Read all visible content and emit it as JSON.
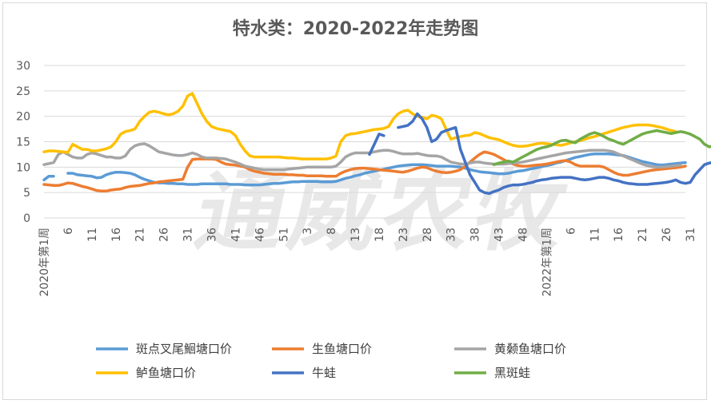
{
  "chart_data": {
    "type": "line",
    "title": "特水类：2020-2022年走势图",
    "watermark": "通威农牧",
    "ylim": [
      0,
      30
    ],
    "yticks": [
      0,
      5,
      10,
      15,
      20,
      25,
      30
    ],
    "x_tick_labels": [
      "2020年第1周",
      "6",
      "11",
      "16",
      "21",
      "26",
      "31",
      "36",
      "41",
      "46",
      "51",
      "3",
      "8",
      "13",
      "18",
      "23",
      "28",
      "33",
      "38",
      "43",
      "48",
      "2022年第1周",
      "6",
      "11",
      "16",
      "21",
      "26",
      "31"
    ],
    "legend_placement": "bottom",
    "grid": true,
    "series": [
      {
        "name": "斑点叉尾鮰塘口价",
        "color": "#5B9BD5",
        "values": [
          7.5,
          8.2,
          8.2,
          null,
          null,
          8.8,
          8.8,
          8.5,
          8.4,
          8.3,
          8.2,
          7.9,
          8.0,
          8.5,
          8.8,
          9.0,
          9.0,
          8.9,
          8.8,
          8.5,
          8.0,
          7.6,
          7.3,
          7.0,
          6.9,
          6.9,
          6.8,
          6.8,
          6.7,
          6.7,
          6.6,
          6.6,
          6.6,
          6.7,
          6.7,
          6.7,
          6.7,
          6.7,
          6.7,
          6.6,
          6.6,
          6.6,
          6.5,
          6.5,
          6.5,
          6.5,
          6.6,
          6.7,
          6.8,
          6.8,
          6.9,
          7.0,
          7.1,
          7.1,
          7.2,
          7.2,
          7.2,
          7.2,
          7.1,
          7.1,
          7.1,
          7.2,
          7.5,
          7.8,
          8.0,
          8.3,
          8.5,
          8.8,
          9.0,
          9.2,
          9.4,
          9.6,
          9.8,
          10.0,
          10.2,
          10.3,
          10.4,
          10.5,
          10.5,
          10.5,
          10.4,
          10.3,
          10.2,
          10.2,
          10.2,
          10.2,
          10.1,
          10.0,
          9.8,
          9.5,
          9.3,
          9.1,
          9.0,
          8.9,
          8.8,
          8.7,
          8.7,
          8.8,
          9.0,
          9.2,
          9.3,
          9.5,
          9.7,
          9.9,
          10.1,
          10.3,
          10.5,
          10.8,
          11.0,
          11.3,
          11.6,
          11.9,
          12.1,
          12.3,
          12.5,
          12.6,
          12.6,
          12.6,
          12.6,
          12.5,
          12.4,
          12.3,
          12.0,
          11.7,
          11.4,
          11.1,
          10.9,
          10.7,
          10.5,
          10.4,
          10.5,
          10.6,
          10.7,
          10.8,
          10.9
        ]
      },
      {
        "name": "生鱼塘口价",
        "color": "#ED7D31",
        "values": [
          6.6,
          6.5,
          6.4,
          6.4,
          6.6,
          6.9,
          6.8,
          6.5,
          6.2,
          6.0,
          5.7,
          5.4,
          5.3,
          5.3,
          5.5,
          5.6,
          5.7,
          6.0,
          6.2,
          6.3,
          6.4,
          6.6,
          6.8,
          6.9,
          7.1,
          7.2,
          7.3,
          7.4,
          7.5,
          7.6,
          10.0,
          11.5,
          11.6,
          11.6,
          11.6,
          11.6,
          11.5,
          11.0,
          10.6,
          10.5,
          10.4,
          10.2,
          10.0,
          9.5,
          9.2,
          9.0,
          8.8,
          8.7,
          8.6,
          8.6,
          8.6,
          8.5,
          8.5,
          8.4,
          8.4,
          8.3,
          8.3,
          8.3,
          8.3,
          8.2,
          8.2,
          8.2,
          8.8,
          9.2,
          9.5,
          9.7,
          9.8,
          9.8,
          9.7,
          9.6,
          9.5,
          9.4,
          9.3,
          9.2,
          9.1,
          9.0,
          9.2,
          9.5,
          9.8,
          10.0,
          9.9,
          9.5,
          9.2,
          9.0,
          8.9,
          9.0,
          9.2,
          9.5,
          10.2,
          11.0,
          11.8,
          12.5,
          13.0,
          12.8,
          12.5,
          12.0,
          11.5,
          11.0,
          10.6,
          10.3,
          10.2,
          10.2,
          10.3,
          10.4,
          10.5,
          10.6,
          10.8,
          11.0,
          11.2,
          11.3,
          11.0,
          10.5,
          10.2,
          10.2,
          10.2,
          10.2,
          10.2,
          10.0,
          9.5,
          9.0,
          8.6,
          8.4,
          8.4,
          8.6,
          8.8,
          9.0,
          9.2,
          9.4,
          9.5,
          9.6,
          9.7,
          9.8,
          9.9,
          10.0,
          10.2
        ]
      },
      {
        "name": "黄颡鱼塘口价",
        "color": "#A5A5A5",
        "values": [
          10.5,
          10.7,
          10.9,
          12.5,
          13.0,
          12.5,
          12.0,
          11.8,
          11.8,
          12.5,
          12.8,
          12.6,
          12.3,
          12.0,
          12.0,
          11.8,
          11.8,
          12.2,
          13.5,
          14.2,
          14.5,
          14.6,
          14.2,
          13.6,
          13.0,
          12.8,
          12.6,
          12.4,
          12.3,
          12.3,
          12.5,
          12.8,
          12.5,
          12.0,
          11.8,
          11.8,
          11.8,
          11.7,
          11.6,
          11.3,
          11.0,
          10.6,
          10.2,
          10.0,
          9.8,
          9.6,
          9.5,
          9.5,
          9.5,
          9.5,
          9.5,
          9.6,
          9.7,
          9.8,
          9.9,
          10.0,
          10.0,
          10.0,
          10.0,
          10.0,
          10.0,
          10.2,
          11.0,
          12.0,
          12.5,
          12.8,
          12.8,
          12.8,
          12.8,
          13.0,
          13.2,
          13.3,
          13.3,
          13.1,
          12.8,
          12.6,
          12.6,
          12.6,
          12.7,
          12.5,
          12.3,
          12.2,
          12.2,
          12.0,
          11.5,
          11.0,
          10.8,
          10.6,
          10.6,
          10.8,
          11.0,
          11.0,
          10.8,
          10.7,
          10.6,
          10.6,
          10.6,
          10.7,
          10.8,
          10.9,
          11.0,
          11.2,
          11.4,
          11.6,
          11.8,
          12.0,
          12.2,
          12.4,
          12.6,
          12.8,
          12.9,
          13.0,
          13.1,
          13.2,
          13.3,
          13.3,
          13.3,
          13.3,
          13.2,
          13.0,
          12.6,
          12.2,
          11.8,
          11.4,
          11.0,
          10.6,
          10.3,
          10.1,
          10.0,
          10.0,
          10.1,
          10.2,
          10.3,
          10.4
        ]
      },
      {
        "name": "鲈鱼塘口价",
        "color": "#FFC000",
        "values": [
          13.0,
          13.2,
          13.2,
          13.1,
          13.0,
          12.9,
          14.5,
          14.0,
          13.5,
          13.5,
          13.2,
          13.2,
          13.4,
          13.6,
          14.0,
          15.0,
          16.5,
          17.0,
          17.2,
          17.5,
          19.0,
          20.0,
          20.8,
          21.0,
          20.8,
          20.5,
          20.3,
          20.5,
          21.0,
          22.0,
          24.0,
          24.5,
          22.5,
          20.5,
          19.0,
          18.0,
          17.6,
          17.4,
          17.2,
          17.0,
          16.2,
          14.5,
          13.2,
          12.2,
          12.0,
          12.0,
          12.0,
          12.0,
          12.0,
          12.0,
          11.9,
          11.8,
          11.8,
          11.7,
          11.6,
          11.6,
          11.6,
          11.6,
          11.6,
          11.6,
          11.8,
          12.2,
          15.0,
          16.2,
          16.5,
          16.6,
          16.8,
          17.0,
          17.2,
          17.4,
          17.5,
          17.6,
          18.0,
          19.5,
          20.5,
          21.0,
          21.2,
          20.5,
          20.0,
          19.8,
          19.5,
          20.2,
          20.0,
          19.5,
          17.5,
          15.5,
          15.8,
          16.0,
          16.2,
          16.3,
          16.8,
          16.6,
          16.2,
          15.8,
          15.6,
          15.4,
          15.0,
          14.6,
          14.3,
          14.1,
          14.1,
          14.2,
          14.4,
          14.6,
          14.7,
          14.6,
          14.5,
          14.4,
          14.3,
          14.5,
          14.8,
          15.0,
          15.2,
          15.5,
          15.8,
          16.0,
          16.3,
          16.6,
          16.9,
          17.2,
          17.5,
          17.8,
          18.0,
          18.2,
          18.3,
          18.3,
          18.3,
          18.2,
          18.0,
          17.8,
          17.5,
          17.2,
          17.0
        ]
      },
      {
        "name": "牛蛙",
        "color": "#4472C4",
        "values": [
          null,
          null,
          null,
          null,
          null,
          null,
          null,
          null,
          null,
          null,
          null,
          null,
          null,
          null,
          null,
          null,
          null,
          null,
          null,
          null,
          null,
          null,
          null,
          null,
          null,
          null,
          null,
          null,
          null,
          null,
          null,
          null,
          null,
          null,
          null,
          null,
          null,
          null,
          null,
          null,
          null,
          null,
          null,
          null,
          null,
          null,
          null,
          null,
          null,
          null,
          null,
          null,
          null,
          null,
          null,
          null,
          null,
          null,
          null,
          null,
          null,
          null,
          null,
          null,
          null,
          null,
          null,
          null,
          12.5,
          14.5,
          16.5,
          16.2,
          null,
          null,
          17.8,
          18.0,
          18.2,
          19.0,
          20.5,
          19.5,
          17.8,
          15.0,
          15.5,
          16.8,
          17.2,
          17.5,
          17.8,
          13.5,
          11.0,
          8.5,
          7.0,
          5.5,
          5.0,
          4.8,
          5.2,
          5.5,
          6.0,
          6.3,
          6.5,
          6.5,
          6.6,
          6.8,
          7.0,
          7.3,
          7.5,
          7.6,
          7.8,
          7.9,
          8.0,
          8.0,
          8.0,
          7.8,
          7.6,
          7.5,
          7.6,
          7.8,
          8.0,
          8.0,
          7.8,
          7.5,
          7.3,
          7.0,
          6.8,
          6.7,
          6.6,
          6.6,
          6.6,
          6.7,
          6.8,
          6.9,
          7.0,
          7.2,
          7.5,
          7.0,
          6.8,
          7.0,
          8.5,
          9.5,
          10.5,
          10.8,
          11.0,
          11.0
        ]
      },
      {
        "name": "黑斑蛙",
        "color": "#70AD47",
        "values": [
          null,
          null,
          null,
          null,
          null,
          null,
          null,
          null,
          null,
          null,
          null,
          null,
          null,
          null,
          null,
          null,
          null,
          null,
          null,
          null,
          null,
          null,
          null,
          null,
          null,
          null,
          null,
          null,
          null,
          null,
          null,
          null,
          null,
          null,
          null,
          null,
          null,
          null,
          null,
          null,
          null,
          null,
          null,
          null,
          null,
          null,
          null,
          null,
          null,
          null,
          null,
          null,
          null,
          null,
          null,
          null,
          null,
          null,
          null,
          null,
          null,
          null,
          null,
          null,
          null,
          null,
          null,
          null,
          null,
          null,
          null,
          null,
          null,
          null,
          null,
          null,
          null,
          null,
          null,
          null,
          null,
          null,
          null,
          null,
          null,
          null,
          null,
          null,
          null,
          null,
          null,
          null,
          null,
          null,
          10.5,
          10.8,
          11.0,
          11.2,
          11.0,
          11.5,
          12.0,
          12.5,
          13.0,
          13.5,
          13.8,
          14.0,
          14.3,
          14.8,
          15.2,
          15.3,
          15.0,
          14.8,
          15.5,
          16.0,
          16.5,
          16.8,
          16.5,
          16.0,
          15.5,
          15.2,
          14.8,
          14.5,
          15.0,
          15.5,
          16.0,
          16.5,
          16.8,
          17.0,
          17.2,
          17.0,
          16.8,
          16.6,
          16.8,
          17.0,
          16.8,
          16.5,
          16.0,
          15.5,
          14.5,
          14.0,
          14.2
        ]
      }
    ]
  }
}
